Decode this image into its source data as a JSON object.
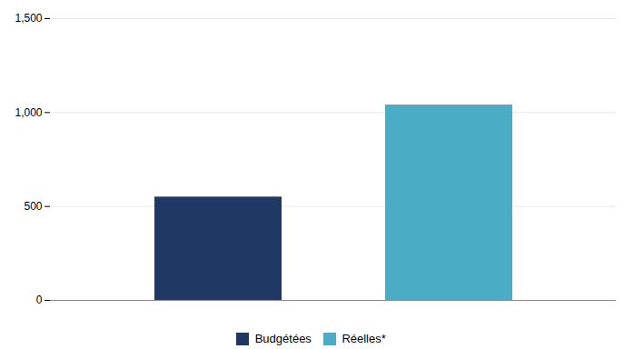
{
  "chart_data": {
    "type": "bar",
    "categories": [
      "Budgétées",
      "Réelles*"
    ],
    "values": [
      550,
      1040
    ],
    "colors": [
      "#1F3864",
      "#4BACC6"
    ],
    "ylim": [
      0,
      1500
    ],
    "yticks": [
      0,
      500,
      {
        "value": 1000,
        "label": "1,000"
      },
      {
        "value": 1500,
        "label": "1,500"
      }
    ],
    "grid": true,
    "legend": "bottom",
    "tick_labels": "y"
  }
}
